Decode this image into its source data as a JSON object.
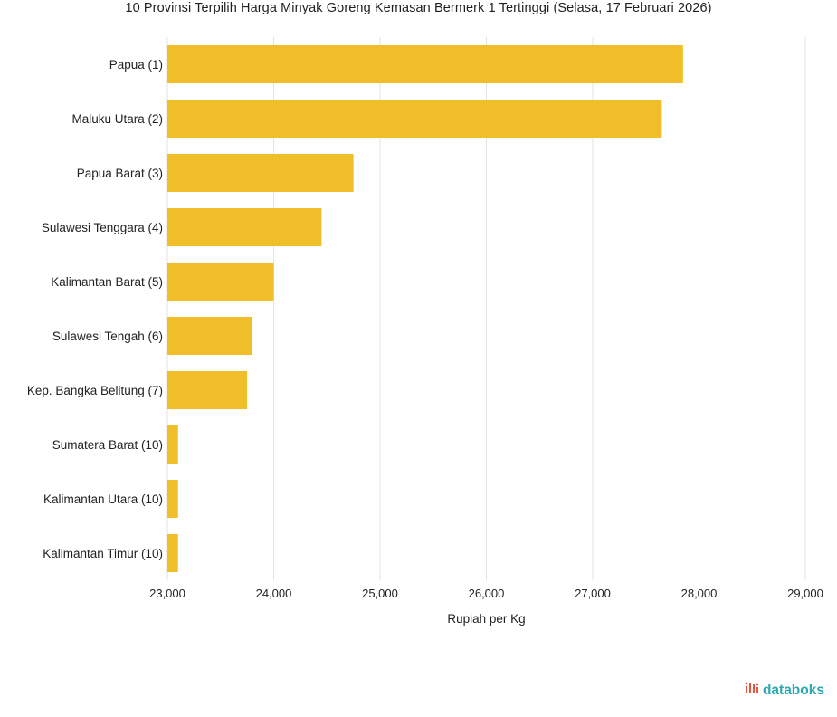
{
  "title": "10 Provinsi Terpilih Harga Minyak Goreng Kemasan Bermerk 1 Tertinggi (Selasa, 17 Februari 2026)",
  "brand": {
    "name": "databoks",
    "icon": "databoks-logo-icon"
  },
  "colors": {
    "bar": "#F0BE29",
    "grid": "#e3e3e3",
    "brand": "#2aa9b3"
  },
  "chart_data": {
    "type": "bar",
    "orientation": "horizontal",
    "title": "10 Provinsi Terpilih Harga Minyak Goreng Kemasan Bermerk 1 Tertinggi (Selasa, 17 Februari 2026)",
    "xlabel": "Rupiah per Kg",
    "ylabel": "",
    "xlim": [
      23000,
      29000
    ],
    "ticks": [
      23000,
      24000,
      25000,
      26000,
      27000,
      28000,
      29000
    ],
    "tick_labels": [
      "23,000",
      "24,000",
      "25,000",
      "26,000",
      "27,000",
      "28,000",
      "29,000"
    ],
    "grid": "vertical",
    "categories": [
      "Papua (1)",
      "Maluku Utara (2)",
      "Papua Barat (3)",
      "Sulawesi Tenggara (4)",
      "Kalimantan Barat (5)",
      "Sulawesi Tengah (6)",
      "Kep. Bangka Belitung (7)",
      "Sumatera Barat (10)",
      "Kalimantan Utara (10)",
      "Kalimantan Timur (10)"
    ],
    "values": [
      27850,
      27650,
      24750,
      24450,
      24000,
      23800,
      23750,
      23100,
      23100,
      23100
    ]
  }
}
